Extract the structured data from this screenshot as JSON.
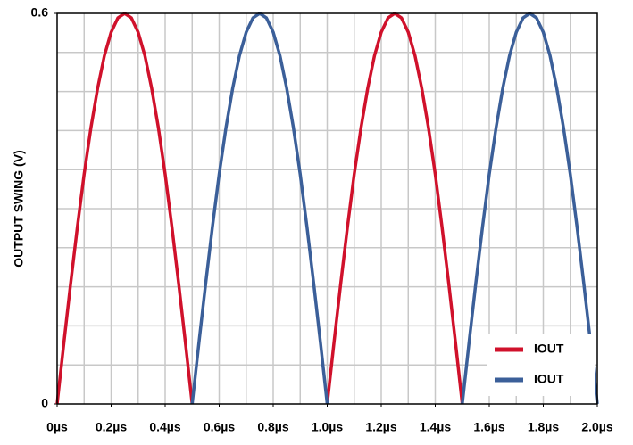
{
  "chart_data": {
    "type": "line",
    "y_label": "OUTPUT SWING (V)",
    "x": [
      0,
      0.025,
      0.05,
      0.075,
      0.1,
      0.125,
      0.15,
      0.175,
      0.2,
      0.225,
      0.25,
      0.275,
      0.3,
      0.325,
      0.35,
      0.375,
      0.4,
      0.425,
      0.45,
      0.475,
      0.5,
      0.525,
      0.55,
      0.575,
      0.6,
      0.625,
      0.65,
      0.675,
      0.7,
      0.725,
      0.75,
      0.775,
      0.8,
      0.825,
      0.85,
      0.875,
      0.9,
      0.925,
      0.95,
      0.975,
      1.0,
      1.025,
      1.05,
      1.075,
      1.1,
      1.125,
      1.15,
      1.175,
      1.2,
      1.225,
      1.25,
      1.275,
      1.3,
      1.325,
      1.35,
      1.375,
      1.4,
      1.425,
      1.45,
      1.475,
      1.5,
      1.525,
      1.55,
      1.575,
      1.6,
      1.625,
      1.65,
      1.675,
      1.7,
      1.725,
      1.75,
      1.775,
      1.8,
      1.825,
      1.85,
      1.875,
      1.9,
      1.925,
      1.95,
      1.975,
      2.0
    ],
    "series": [
      {
        "name": "IOUT",
        "color": "#d0112b",
        "values": [
          0,
          0.094,
          0.185,
          0.272,
          0.353,
          0.424,
          0.485,
          0.535,
          0.571,
          0.593,
          0.6,
          0.593,
          0.571,
          0.535,
          0.485,
          0.424,
          0.353,
          0.272,
          0.185,
          0.094,
          0,
          null,
          null,
          null,
          null,
          null,
          null,
          null,
          null,
          null,
          null,
          null,
          null,
          null,
          null,
          null,
          null,
          null,
          null,
          null,
          0,
          0.094,
          0.185,
          0.272,
          0.353,
          0.424,
          0.485,
          0.535,
          0.571,
          0.593,
          0.6,
          0.593,
          0.571,
          0.535,
          0.485,
          0.424,
          0.353,
          0.272,
          0.185,
          0.094,
          0,
          null,
          null,
          null,
          null,
          null,
          null,
          null,
          null,
          null,
          null,
          null,
          null,
          null,
          null,
          null,
          null,
          null,
          null,
          null,
          null
        ]
      },
      {
        "name": "IOUT",
        "color": "#3b5f99",
        "values": [
          null,
          null,
          null,
          null,
          null,
          null,
          null,
          null,
          null,
          null,
          null,
          null,
          null,
          null,
          null,
          null,
          null,
          null,
          null,
          null,
          0,
          0.094,
          0.185,
          0.272,
          0.353,
          0.424,
          0.485,
          0.535,
          0.571,
          0.593,
          0.6,
          0.593,
          0.571,
          0.535,
          0.485,
          0.424,
          0.353,
          0.272,
          0.185,
          0.094,
          0,
          null,
          null,
          null,
          null,
          null,
          null,
          null,
          null,
          null,
          null,
          null,
          null,
          null,
          null,
          null,
          null,
          null,
          null,
          null,
          0,
          0.094,
          0.185,
          0.272,
          0.353,
          0.424,
          0.485,
          0.535,
          0.571,
          0.593,
          0.6,
          0.593,
          0.571,
          0.535,
          0.485,
          0.424,
          0.353,
          0.272,
          0.185,
          0.094,
          0
        ]
      }
    ],
    "xlim": [
      0,
      2.0
    ],
    "xticks": [
      {
        "value": 0,
        "label": "0µs"
      },
      {
        "value": 0.2,
        "label": "0.2µs"
      },
      {
        "value": 0.4,
        "label": "0.4µs"
      },
      {
        "value": 0.6,
        "label": "0.6µs"
      },
      {
        "value": 0.8,
        "label": "0.8µs"
      },
      {
        "value": 1.0,
        "label": "1.0µs"
      },
      {
        "value": 1.2,
        "label": "1.2µs"
      },
      {
        "value": 1.4,
        "label": "1.4µs"
      },
      {
        "value": 1.6,
        "label": "1.6µs"
      },
      {
        "value": 1.8,
        "label": "1.8µs"
      },
      {
        "value": 2.0,
        "label": "2.0µs"
      }
    ],
    "ylim": [
      0,
      0.6
    ],
    "yticks": [
      0,
      0.6
    ],
    "grid_divisions": {
      "x": 20,
      "y": 10
    },
    "legend": "lower right"
  }
}
